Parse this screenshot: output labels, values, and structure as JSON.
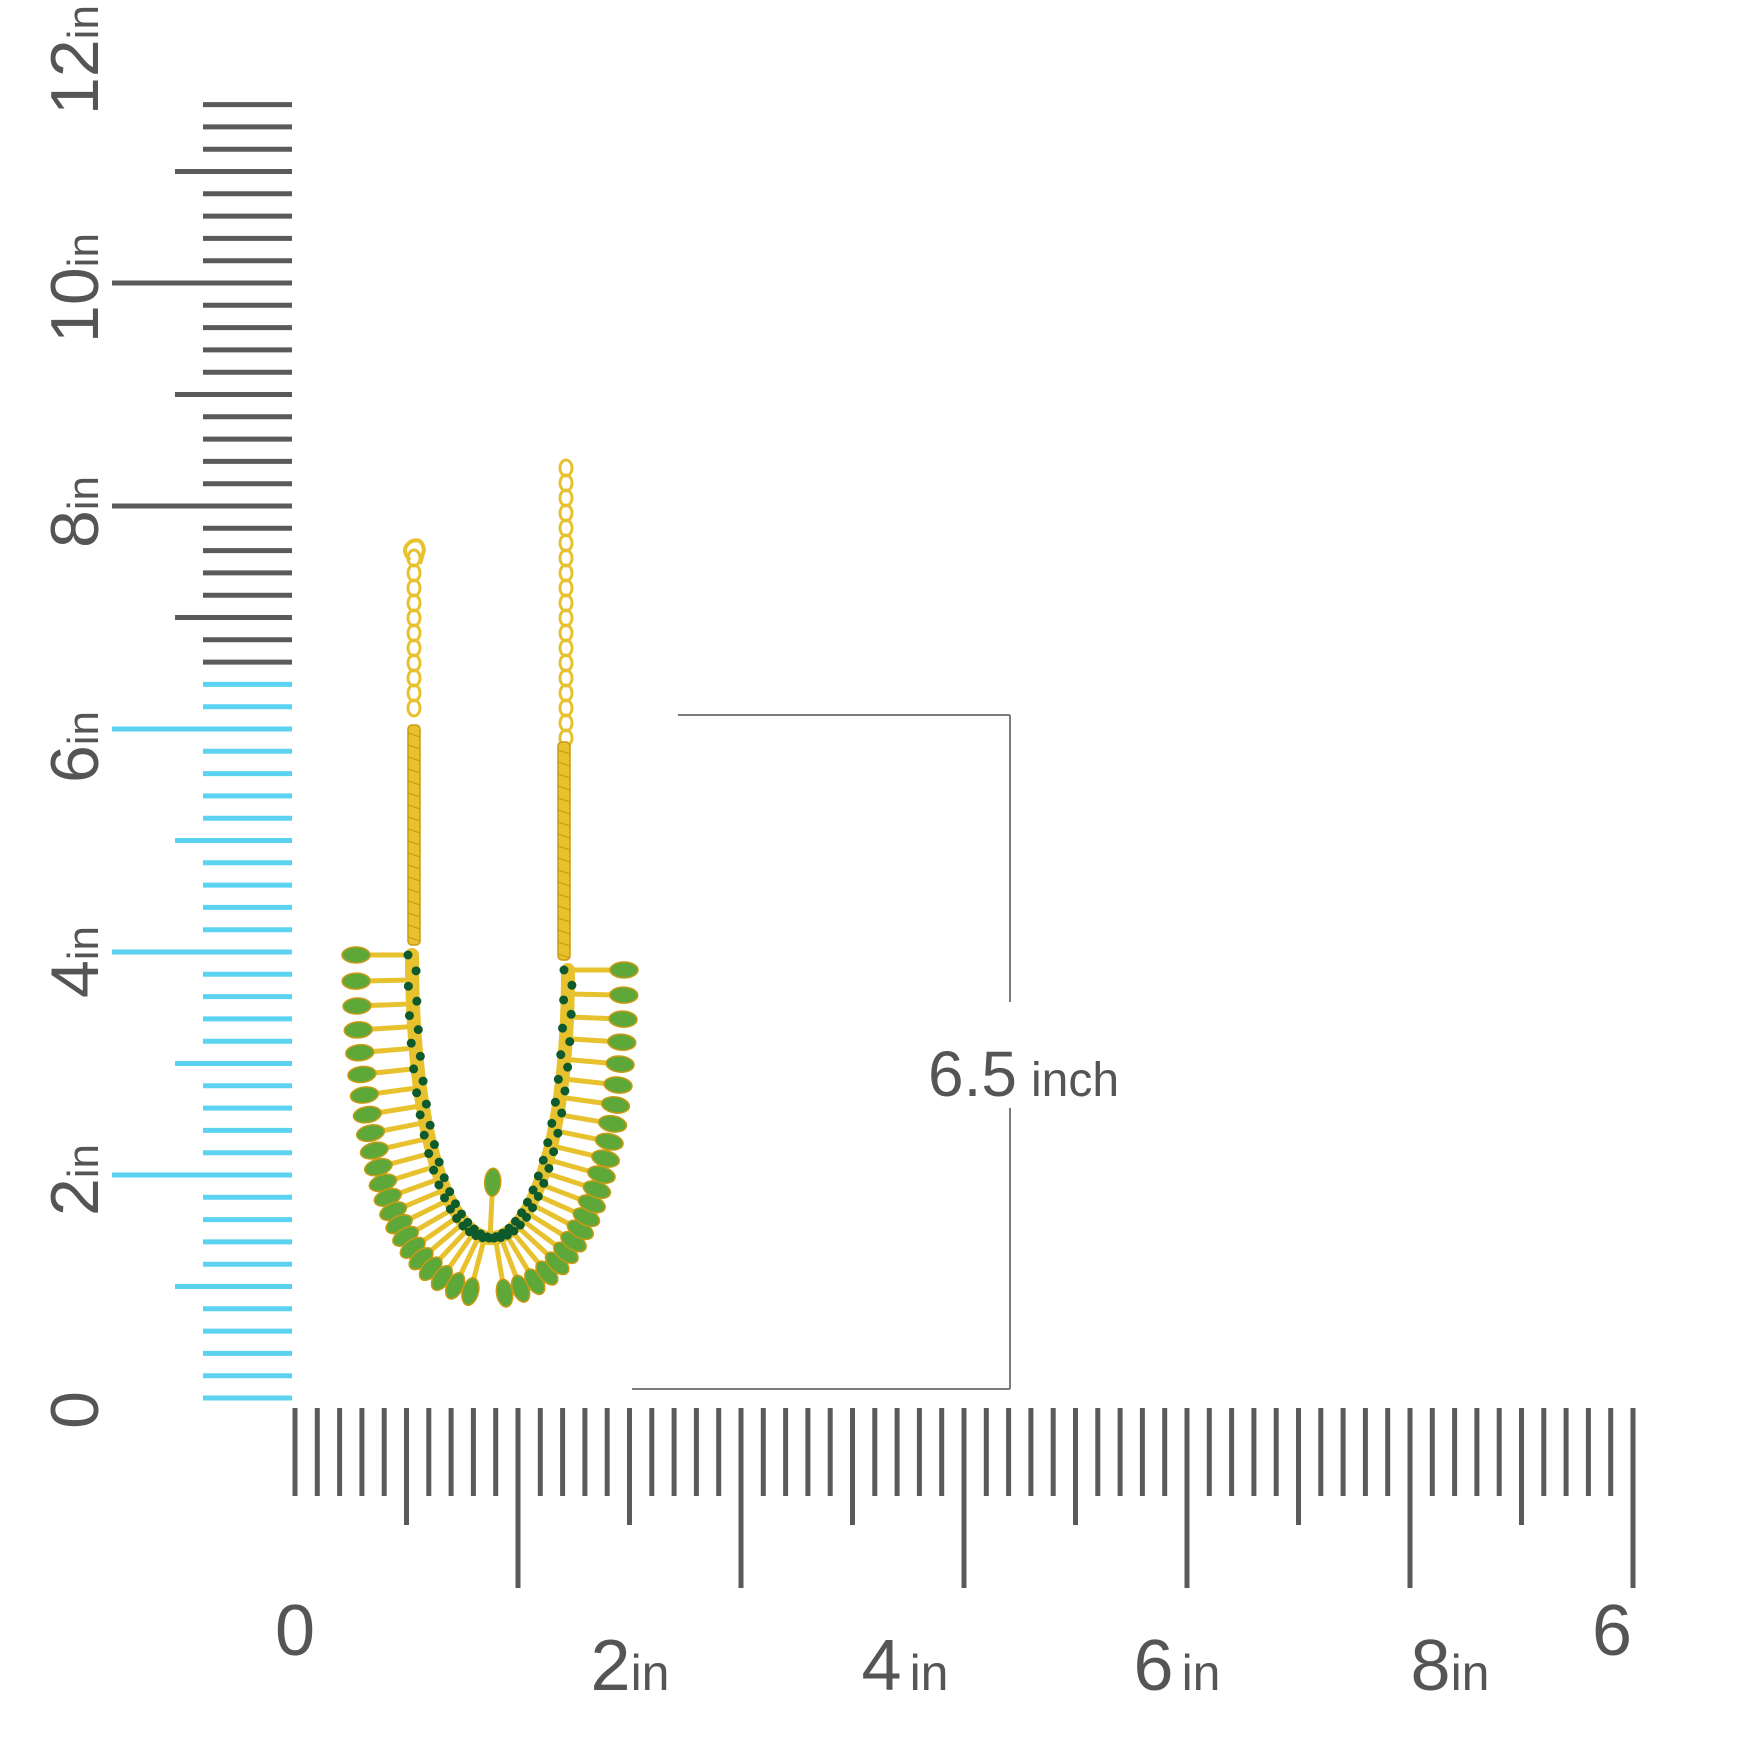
{
  "colors": {
    "ruler_tick": "#5a5a5a",
    "ruler_highlight": "#5bd3f0",
    "label": "#555555",
    "gold": "#e8c22e",
    "gold_dark": "#c99a12",
    "leaf_green": "#5ea83a",
    "emerald": "#0d5a2c",
    "dimension_line": "#7a7a7a"
  },
  "vertical_ruler": {
    "labels": [
      {
        "num": "0",
        "unit": ""
      },
      {
        "num": "2",
        "unit": "in"
      },
      {
        "num": "4",
        "unit": "in"
      },
      {
        "num": "6",
        "unit": "in"
      },
      {
        "num": "8",
        "unit": "in"
      },
      {
        "num": "10",
        "unit": "in"
      },
      {
        "num": "12",
        "unit": "in"
      }
    ],
    "highlighted_length_in": 6.5
  },
  "horizontal_ruler": {
    "labels": [
      {
        "num": "0",
        "unit": ""
      },
      {
        "num": "2",
        "unit": "in"
      },
      {
        "num": "4",
        "unit": "in"
      },
      {
        "num": "6",
        "unit": "in"
      },
      {
        "num": "8",
        "unit": "in"
      },
      {
        "num": "6",
        "unit": ""
      }
    ]
  },
  "dimension": {
    "value": "6.5",
    "unit": "inch"
  },
  "product": {
    "icon": "necklace-icon"
  }
}
